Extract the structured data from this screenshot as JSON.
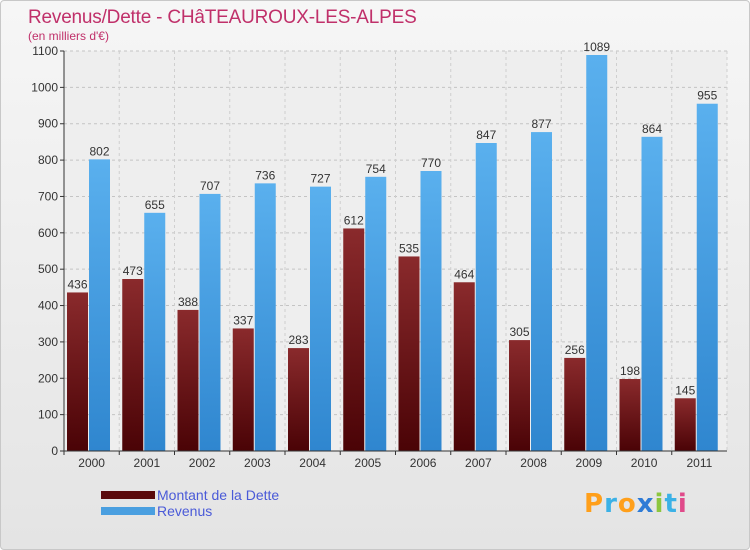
{
  "title": "Revenus/Dette - CHâTEAUROUX-LES-ALPES",
  "subtitle": "(en milliers d'€)",
  "logo": {
    "letters": [
      "P",
      "r",
      "o",
      "x",
      "i",
      "t",
      "i"
    ],
    "colors": [
      "#ff9f1a",
      "#3bb1e6",
      "#ff9f1a",
      "#2e7bd6",
      "#8cc63f",
      "#3bb1e6",
      "#e04a8a"
    ]
  },
  "chart_data": {
    "type": "bar",
    "title": "Revenus/Dette - CHâTEAUROUX-LES-ALPES",
    "subtitle": "(en milliers d'€)",
    "categories": [
      "2000",
      "2001",
      "2002",
      "2003",
      "2004",
      "2005",
      "2006",
      "2007",
      "2008",
      "2009",
      "2010",
      "2011"
    ],
    "series": [
      {
        "name": "Montant de la Dette",
        "color": "#7a1214",
        "values": [
          436,
          473,
          388,
          337,
          283,
          612,
          535,
          464,
          305,
          256,
          198,
          145
        ]
      },
      {
        "name": "Revenus",
        "color": "#4a9fe0",
        "values": [
          802,
          655,
          707,
          736,
          727,
          754,
          770,
          847,
          877,
          1089,
          864,
          955
        ]
      }
    ],
    "ylim": [
      0,
      1100
    ],
    "yticks": [
      0,
      100,
      200,
      300,
      400,
      500,
      600,
      700,
      800,
      900,
      1000,
      1100
    ],
    "grid": true,
    "legend_position": "bottom-left"
  }
}
